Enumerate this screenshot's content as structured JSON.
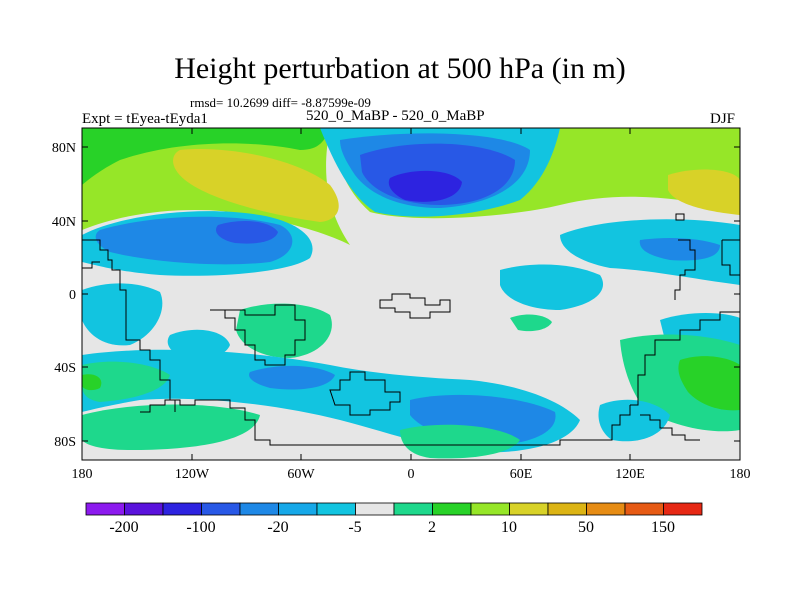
{
  "title": "Height perturbation at 500 hPa (in m)",
  "stats": "rmsd= 10.2699 diff= -8.87599e-09",
  "experiment": "Expt = tEyea-tEyda1",
  "case_label": "520_0_MaBP - 520_0_MaBP",
  "season": "DJF",
  "lat_ticks": [
    "80N",
    "40N",
    "0",
    "40S",
    "80S"
  ],
  "lon_ticks": [
    "180",
    "120W",
    "60W",
    "0",
    "60E",
    "120E",
    "180"
  ],
  "colorbar": {
    "labels": [
      "-200",
      "-100",
      "-20",
      "-5",
      "2",
      "10",
      "50",
      "150"
    ],
    "colors": [
      "#8c1aee",
      "#5a12dc",
      "#2d23e0",
      "#2858e6",
      "#1e88e6",
      "#16a8e8",
      "#12c4e0",
      "#e6e6e6",
      "#1ed88c",
      "#28d228",
      "#96e628",
      "#d8d228",
      "#dcb414",
      "#e68c14",
      "#e65a14",
      "#e62814"
    ]
  },
  "colors": {
    "background_gray": "#e6e6e6",
    "coastline": "#000000"
  }
}
